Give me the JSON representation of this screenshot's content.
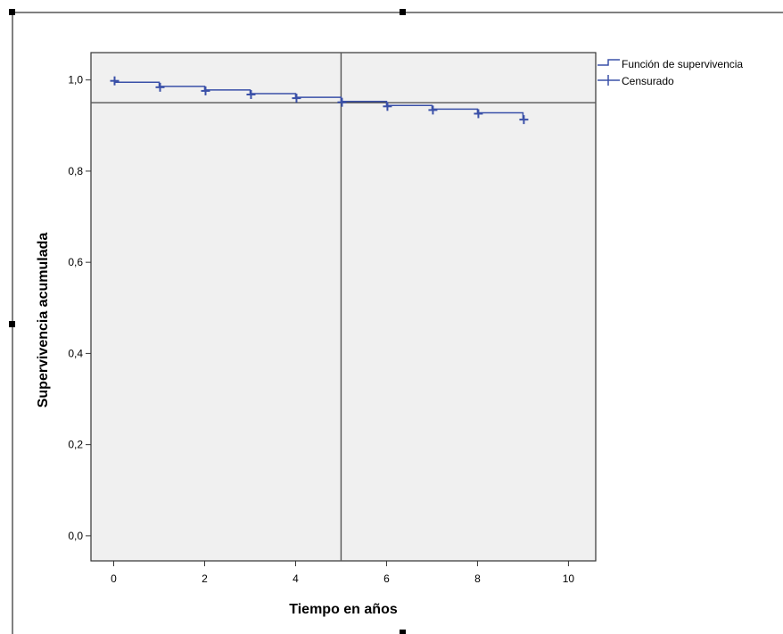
{
  "colors": {
    "plot_background": "#f0f0f0",
    "curve": "#3a50a8",
    "frame": "#333333",
    "reference_line": "#555555"
  },
  "chart_data": {
    "type": "line",
    "subtype": "kaplan-meier step curve",
    "xlabel": "Tiempo en años",
    "ylabel": "Supervivencia acumulada",
    "xlim": [
      -0.5,
      10.6
    ],
    "ylim": [
      -0.055,
      1.06
    ],
    "x_ticks": [
      0,
      2,
      4,
      6,
      8,
      10
    ],
    "x_tick_labels": [
      "0",
      "2",
      "4",
      "6",
      "8",
      "10"
    ],
    "y_ticks": [
      0.0,
      0.2,
      0.4,
      0.6,
      0.8,
      1.0
    ],
    "y_tick_labels": [
      "0,0",
      "0,2",
      "0,4",
      "0,6",
      "0,8",
      "1,0"
    ],
    "grid": false,
    "legend_position": "outside-top-right",
    "reference_lines": {
      "vertical_x": 5,
      "horizontal_y": 0.95
    },
    "series": [
      {
        "name": "Función de supervivencia",
        "kind": "step",
        "x": [
          0,
          1,
          2,
          3,
          4,
          5,
          6,
          7,
          8,
          9
        ],
        "y": [
          0.995,
          0.986,
          0.978,
          0.97,
          0.962,
          0.953,
          0.944,
          0.936,
          0.928,
          0.915
        ]
      },
      {
        "name": "Censurado",
        "kind": "censor-markers",
        "x": [
          0,
          1,
          2,
          3,
          4,
          5,
          6,
          7,
          8,
          9
        ],
        "y": [
          1.0,
          0.986,
          0.978,
          0.97,
          0.962,
          0.953,
          0.944,
          0.936,
          0.928,
          0.915
        ]
      }
    ]
  }
}
